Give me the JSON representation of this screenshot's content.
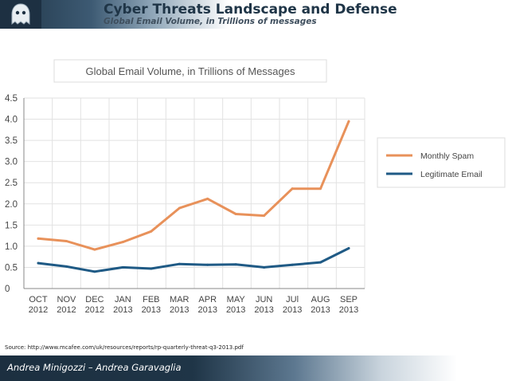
{
  "header": {
    "title": "Cyber Threats Landscape and Defense",
    "subtitle": "Global Email Volume, in Trillions of messages"
  },
  "source": "Source: http://www.mcafee.com/uk/resources/reports/rp-quarterly-threat-q3-2013.pdf",
  "footer": {
    "authors": "Andrea Minigozzi – Andrea Garavaglia"
  },
  "colors": {
    "spam": "#e8915a",
    "legit": "#1f5a85",
    "grid": "#e2e2e2",
    "header": "#1f3547"
  },
  "icons": {
    "logo": "ghost-icon"
  },
  "chart_data": {
    "type": "line",
    "title": "Global Email Volume, in Trillions of Messages",
    "categories": [
      [
        "OCT",
        "2012"
      ],
      [
        "NOV",
        "2012"
      ],
      [
        "DEC",
        "2012"
      ],
      [
        "JAN",
        "2013"
      ],
      [
        "FEB",
        "2013"
      ],
      [
        "MAR",
        "2013"
      ],
      [
        "APR",
        "2013"
      ],
      [
        "MAY",
        "2013"
      ],
      [
        "JUN",
        "2013"
      ],
      [
        "JUl",
        "2013"
      ],
      [
        "AUG",
        "2013"
      ],
      [
        "SEP",
        "2013"
      ]
    ],
    "series": [
      {
        "name": "Monthly Spam",
        "values": [
          1.18,
          1.12,
          0.92,
          1.1,
          1.35,
          1.9,
          2.12,
          1.76,
          1.72,
          2.36,
          2.36,
          3.95
        ]
      },
      {
        "name": "Legitimate Email",
        "values": [
          0.6,
          0.52,
          0.4,
          0.5,
          0.47,
          0.58,
          0.56,
          0.57,
          0.5,
          0.56,
          0.62,
          0.95
        ]
      }
    ],
    "yticks": [
      "4.5",
      "4.0",
      "3.5",
      "3.0",
      "2.5",
      "2.0",
      "1.5",
      "1.0",
      "0.5",
      "0"
    ],
    "ylim": [
      0,
      4.5
    ],
    "grid": true,
    "legend_position": "right"
  }
}
